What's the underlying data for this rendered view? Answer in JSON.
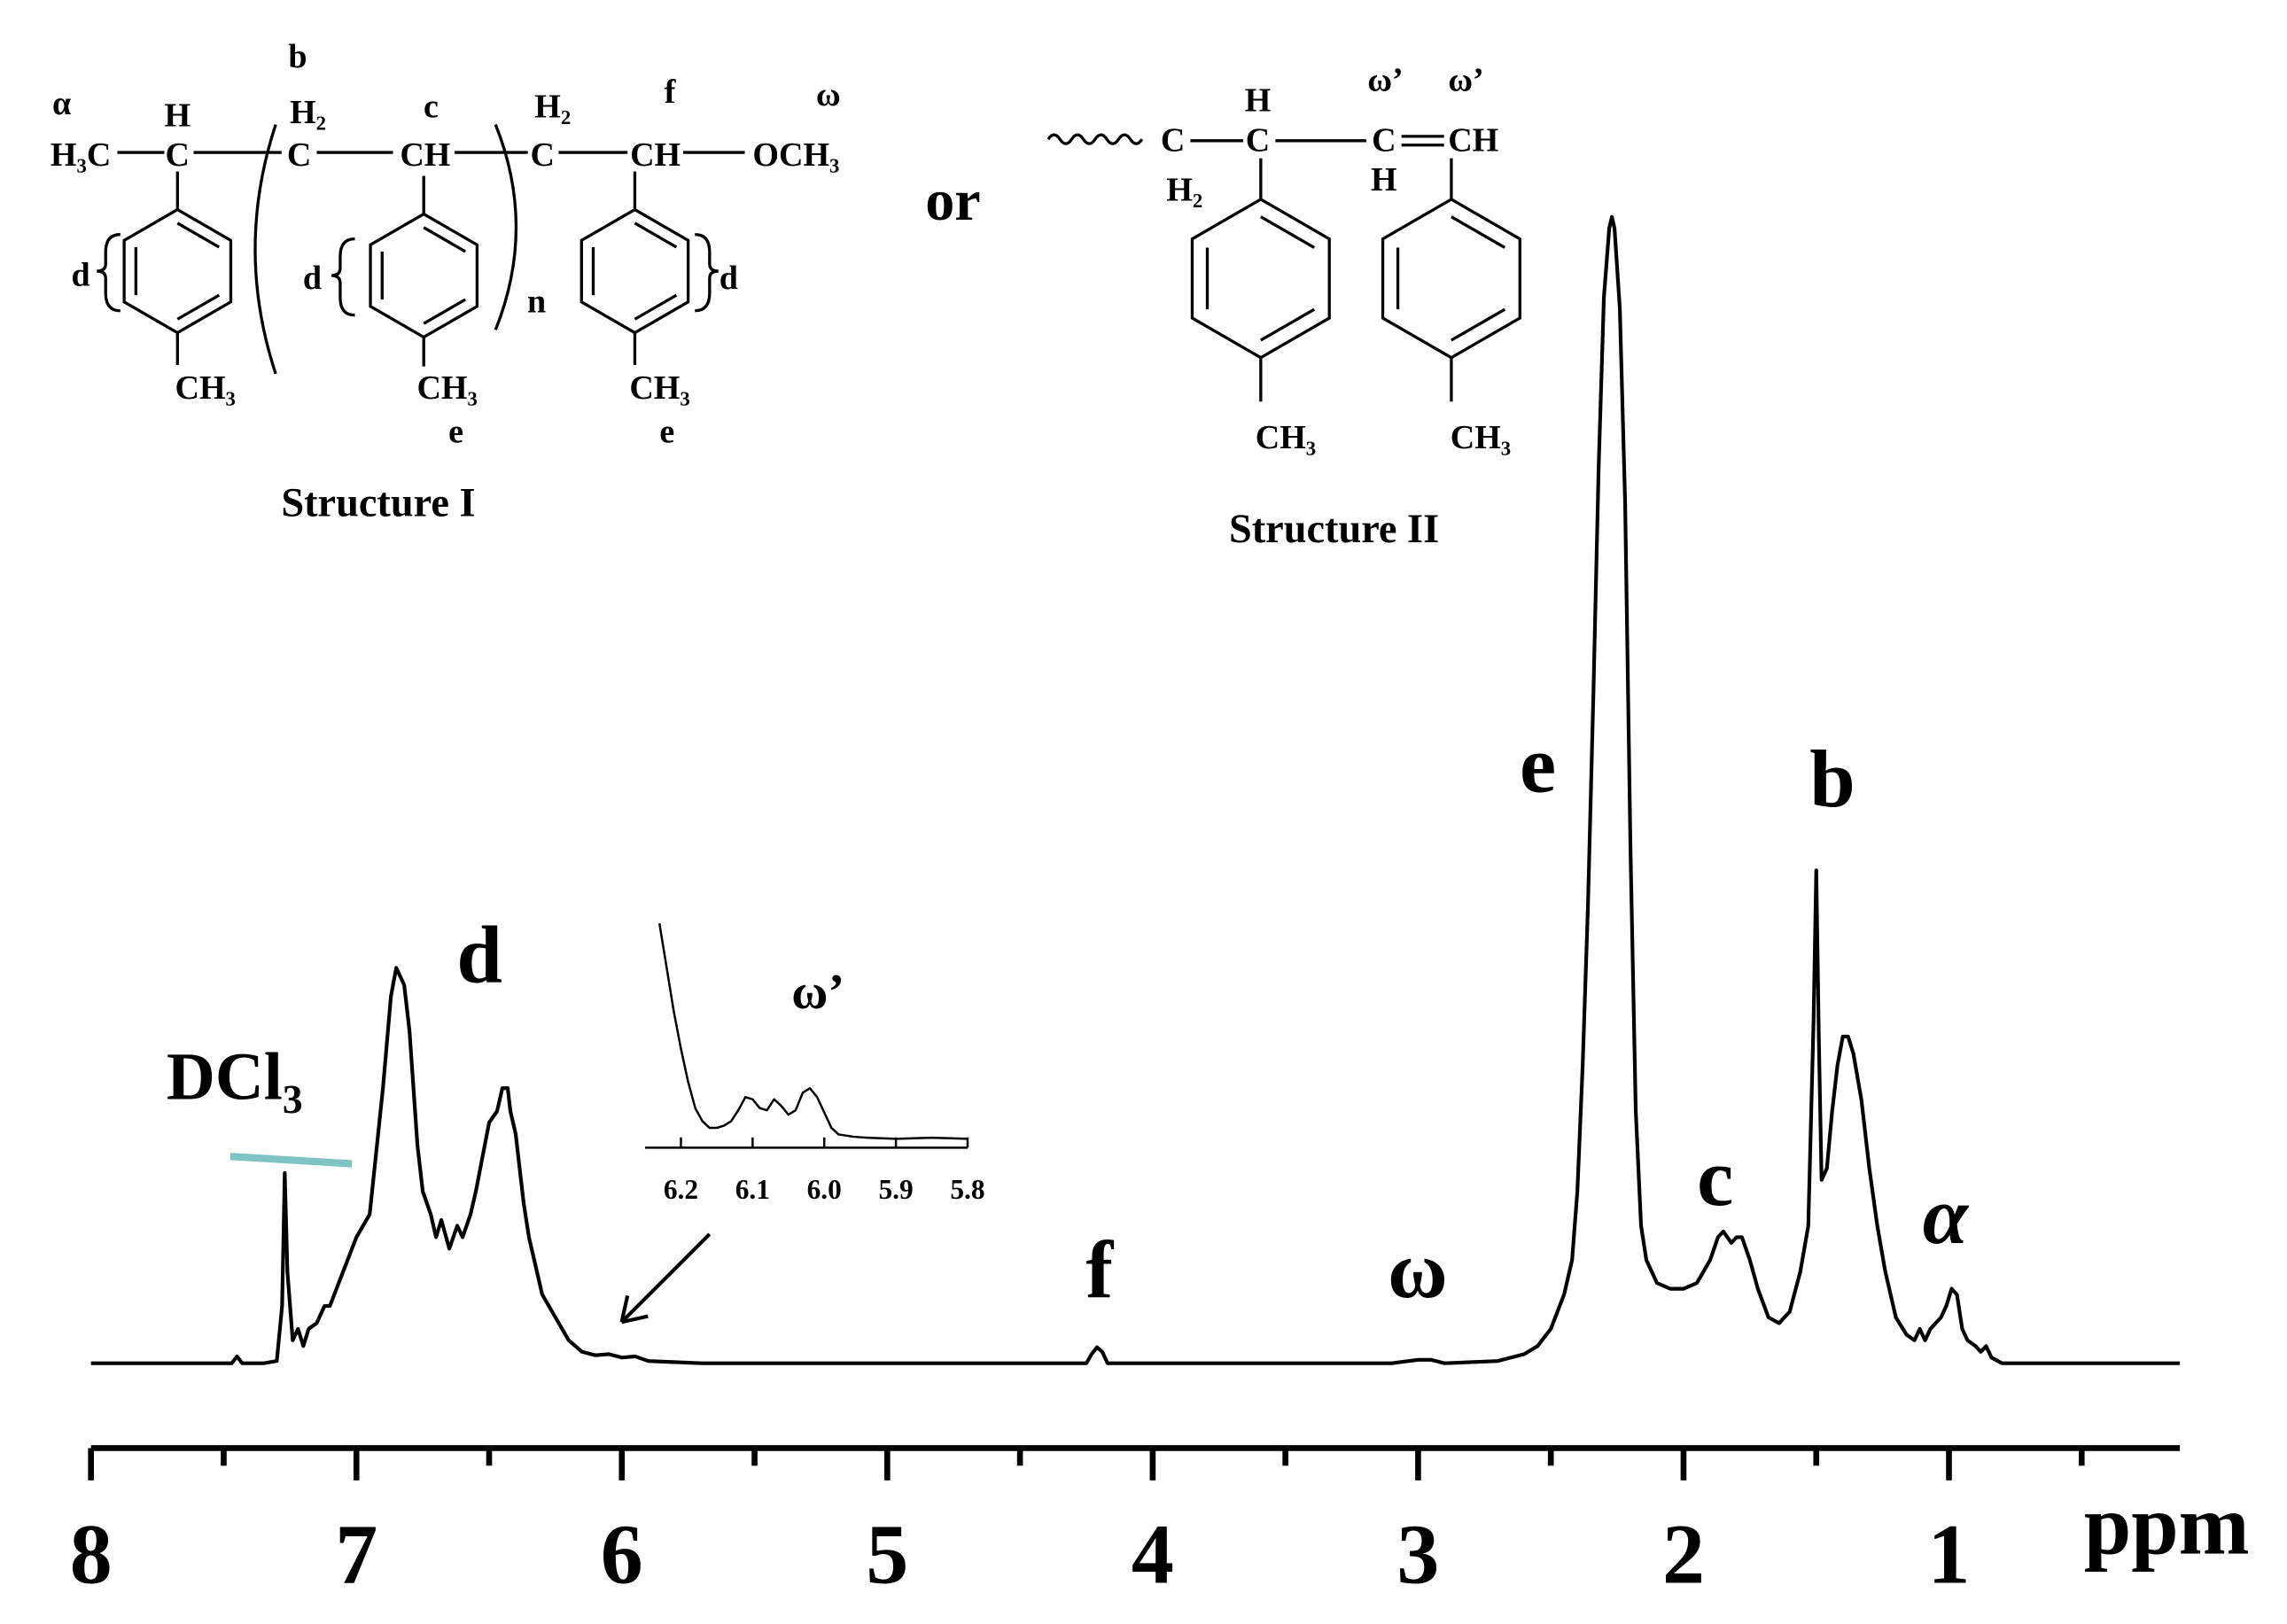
{
  "chart_data": [
    {
      "type": "line",
      "x": [
        8.0,
        7.6,
        7.47,
        7.45,
        7.43,
        7.35,
        7.3,
        7.28,
        7.27,
        7.26,
        7.24,
        7.22,
        7.2,
        7.18,
        7.15,
        7.12,
        7.1,
        7.05,
        7.0,
        6.95,
        6.9,
        6.87,
        6.85,
        6.82,
        6.8,
        6.77,
        6.75,
        6.72,
        6.7,
        6.68,
        6.65,
        6.62,
        6.6,
        6.57,
        6.55,
        6.5,
        6.47,
        6.45,
        6.43,
        6.42,
        6.4,
        6.37,
        6.35,
        6.3,
        6.25,
        6.2,
        6.15,
        6.1,
        6.05,
        6.0,
        5.95,
        5.9,
        5.7,
        5.5,
        5.0,
        4.5,
        4.25,
        4.23,
        4.21,
        4.19,
        4.17,
        3.6,
        3.1,
        3.0,
        2.95,
        2.9,
        2.7,
        2.6,
        2.55,
        2.5,
        2.45,
        2.42,
        2.4,
        2.38,
        2.36,
        2.34,
        2.32,
        2.3,
        2.28,
        2.27,
        2.26,
        2.24,
        2.22,
        2.2,
        2.18,
        2.16,
        2.14,
        2.1,
        2.05,
        2.0,
        1.95,
        1.9,
        1.87,
        1.85,
        1.82,
        1.8,
        1.78,
        1.75,
        1.72,
        1.68,
        1.64,
        1.6,
        1.56,
        1.53,
        1.51,
        1.5,
        1.49,
        1.48,
        1.46,
        1.44,
        1.42,
        1.4,
        1.38,
        1.36,
        1.33,
        1.3,
        1.27,
        1.24,
        1.2,
        1.16,
        1.13,
        1.11,
        1.09,
        1.07,
        1.05,
        1.03,
        1.01,
        0.99,
        0.97,
        0.95,
        0.93,
        0.9,
        0.88,
        0.86,
        0.84,
        0.8,
        0.5,
        0.13
      ],
      "values": [
        0,
        0,
        0,
        0.6,
        0,
        0,
        0.2,
        5,
        16.6,
        8,
        2,
        3,
        1.5,
        3,
        3.5,
        5,
        5,
        8,
        11,
        13,
        24,
        32,
        34.5,
        33,
        29,
        19,
        15,
        13,
        11,
        12.5,
        10,
        12,
        11,
        13,
        15,
        21,
        22,
        24,
        24,
        22,
        20,
        14,
        11,
        6,
        4,
        2,
        1,
        0.7,
        0.8,
        0.5,
        0.6,
        0.2,
        0,
        0,
        0,
        0,
        0,
        0.8,
        1.4,
        1,
        0,
        0,
        0,
        0.3,
        0.3,
        0,
        0.2,
        0.8,
        1.5,
        3,
        6,
        9,
        15,
        26,
        40,
        58,
        78,
        93,
        99,
        100,
        99,
        92,
        75,
        45,
        22,
        12,
        9,
        7,
        6.5,
        6.5,
        7,
        9,
        11,
        11.5,
        10.5,
        11,
        11,
        9,
        6.5,
        4,
        3.5,
        4.5,
        8,
        12,
        30,
        43,
        28,
        16,
        17,
        22,
        26,
        28.5,
        28.5,
        27,
        23,
        17,
        12,
        8,
        4,
        2.5,
        2,
        3,
        2,
        3,
        3.5,
        4,
        5,
        6.5,
        6,
        3,
        2,
        1.5,
        1,
        1.5,
        0.5,
        0,
        0,
        0
      ],
      "color": "#000000",
      "xlim": [
        8,
        0.13
      ],
      "ylim": [
        -7.4,
        100
      ],
      "xticks": [
        8,
        7,
        6,
        5,
        4,
        3,
        2,
        1
      ],
      "xminorticks": [
        7.5,
        6.5,
        5.5,
        4.5,
        3.5,
        2.5,
        1.5,
        0.5
      ],
      "xlabel": "ppm",
      "annotations": [
        "DCl₃",
        "d",
        "f",
        "ω",
        "e",
        "c",
        "b",
        "α"
      ]
    },
    {
      "type": "line",
      "x": [
        6.23,
        6.22,
        6.21,
        6.2,
        6.19,
        6.18,
        6.17,
        6.16,
        6.15,
        6.14,
        6.13,
        6.12,
        6.11,
        6.1,
        6.09,
        6.08,
        6.07,
        6.06,
        6.05,
        6.04,
        6.03,
        6.02,
        6.01,
        6.0,
        5.99,
        5.98,
        5.96,
        5.94,
        5.9,
        5.85,
        5.8
      ],
      "values": [
        100,
        80,
        60,
        43,
        28,
        16,
        10,
        7,
        7,
        8,
        10,
        15,
        21,
        20,
        16,
        15,
        20,
        17,
        13,
        15,
        23,
        25,
        21,
        14,
        7,
        4,
        3,
        2.5,
        2,
        2.5,
        2
      ],
      "color": "#000000",
      "xlim": [
        6.25,
        5.8
      ],
      "ylim": [
        -2,
        100
      ],
      "xticks": [
        6.2,
        6.1,
        {
          "value": 6,
          "label": "6.0"
        },
        5.9,
        5.8
      ],
      "annotations": [
        "ω’"
      ]
    }
  ],
  "structures": [
    {
      "caption": "Structure I",
      "labels": [
        "α",
        "H",
        "b",
        "H₂",
        "c",
        "H₂",
        "f",
        "ω",
        "H₃C",
        "C",
        "C",
        "CH",
        "C",
        "CH",
        "OCH₃",
        "d",
        "d",
        "d",
        "n",
        "CH₃",
        "CH₃",
        "CH₃",
        "e",
        "e"
      ]
    },
    {
      "caption": "Structure II",
      "labels": [
        "C",
        "H₂",
        "H",
        "C",
        "ω’",
        "ω’",
        "C",
        "CH",
        "H",
        "CH₃",
        "CH₃"
      ]
    }
  ],
  "connector": "or"
}
